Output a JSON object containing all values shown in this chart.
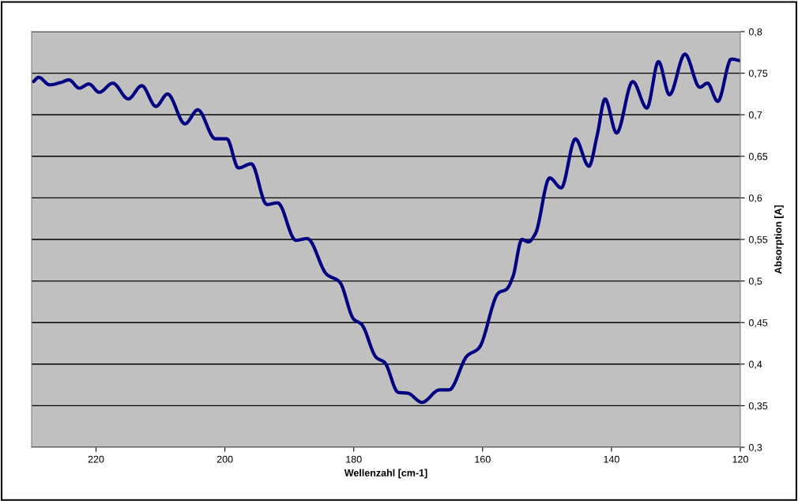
{
  "chart_data": {
    "type": "line",
    "xlabel": "Wellenzahl [cm-1]",
    "ylabel": "Absorption [A]",
    "xlim": [
      230,
      120
    ],
    "xticks": [
      220,
      200,
      180,
      160,
      140,
      120
    ],
    "ylim": [
      0.3,
      0.8
    ],
    "yticks": [
      {
        "value": 0.3,
        "label": "0,3"
      },
      {
        "value": 0.35,
        "label": "0,35"
      },
      {
        "value": 0.4,
        "label": "0,4"
      },
      {
        "value": 0.45,
        "label": "0,45"
      },
      {
        "value": 0.5,
        "label": "0,5"
      },
      {
        "value": 0.55,
        "label": "0,55"
      },
      {
        "value": 0.6,
        "label": "0,6"
      },
      {
        "value": 0.65,
        "label": "0,65"
      },
      {
        "value": 0.7,
        "label": "0,7"
      },
      {
        "value": 0.75,
        "label": "0,75"
      },
      {
        "value": 0.8,
        "label": "0,8"
      }
    ],
    "grid": "y",
    "x": [
      229.7,
      228.9,
      227.2,
      225.4,
      224.2,
      222.6,
      221.1,
      219.5,
      217.4,
      215.0,
      212.9,
      210.7,
      208.9,
      206.2,
      204.2,
      201.5,
      199.7,
      197.9,
      195.9,
      193.5,
      191.8,
      189.0,
      187.2,
      184.2,
      182.2,
      180.0,
      178.8,
      176.5,
      175.2,
      173.1,
      171.6,
      169.4,
      166.7,
      165.2,
      162.4,
      160.6,
      157.5,
      156.3,
      155.3,
      153.9,
      152.9,
      151.8,
      149.6,
      147.8,
      145.6,
      143.5,
      142.2,
      141.0,
      139.2,
      136.7,
      134.5,
      132.7,
      131.0,
      128.6,
      126.3,
      125.1,
      123.5,
      121.4,
      120.0
    ],
    "series": [
      {
        "color": "#000080",
        "values": [
          0.74,
          0.745,
          0.736,
          0.739,
          0.742,
          0.732,
          0.737,
          0.727,
          0.738,
          0.719,
          0.735,
          0.71,
          0.725,
          0.689,
          0.706,
          0.671,
          0.671,
          0.636,
          0.641,
          0.592,
          0.594,
          0.549,
          0.551,
          0.508,
          0.499,
          0.454,
          0.448,
          0.408,
          0.402,
          0.366,
          0.365,
          0.354,
          0.369,
          0.369,
          0.41,
          0.419,
          0.486,
          0.49,
          0.505,
          0.55,
          0.547,
          0.557,
          0.624,
          0.612,
          0.671,
          0.638,
          0.676,
          0.719,
          0.678,
          0.74,
          0.708,
          0.764,
          0.724,
          0.773,
          0.733,
          0.738,
          0.716,
          0.767,
          0.765
        ]
      }
    ]
  }
}
